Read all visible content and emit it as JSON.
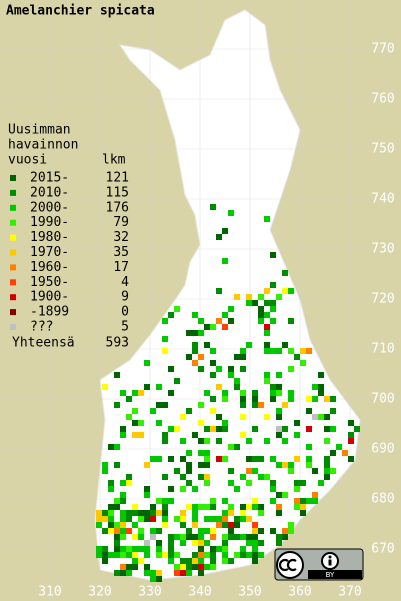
{
  "title": "Amelanchier spicata",
  "legend": {
    "header": [
      "Uusimman",
      "havainnon",
      "vuosi"
    ],
    "count_header": "lkm",
    "rows": [
      {
        "label": "2015-",
        "count": 121,
        "color": "#006400"
      },
      {
        "label": "2010-",
        "count": 115,
        "color": "#008c00"
      },
      {
        "label": "2000-",
        "count": 176,
        "color": "#00c800"
      },
      {
        "label": "1990-",
        "count": 79,
        "color": "#33ee00"
      },
      {
        "label": "1980-",
        "count": 32,
        "color": "#ffff00"
      },
      {
        "label": "1970-",
        "count": 35,
        "color": "#ffc800"
      },
      {
        "label": "1960-",
        "count": 17,
        "color": "#ff8000"
      },
      {
        "label": "1950-",
        "count": 4,
        "color": "#ff4000"
      },
      {
        "label": "1900-",
        "count": 9,
        "color": "#d00000"
      },
      {
        "label": "-1899",
        "count": 0,
        "color": "#800000"
      },
      {
        "label": "???",
        "count": 5,
        "color": "#c0c0c0"
      }
    ],
    "total_label": "Yhteensä",
    "total": 593
  },
  "map": {
    "y_ticks": [
      670,
      680,
      690,
      700,
      710,
      720,
      730,
      740,
      750,
      760,
      770
    ],
    "x_ticks": [
      310,
      320,
      330,
      340,
      350,
      360,
      370
    ]
  },
  "license": {
    "label": "BY"
  }
}
